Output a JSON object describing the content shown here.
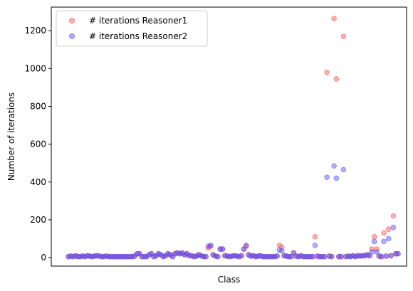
{
  "chart_data": {
    "type": "scatter",
    "xlabel": "Class",
    "ylabel": "Number of iterations",
    "ylim": [
      -45,
      1325
    ],
    "yticks": [
      0,
      200,
      400,
      600,
      800,
      1000,
      1200
    ],
    "xticks_visible": false,
    "grid": false,
    "legend_placement": "top-left",
    "series": [
      {
        "name": "# iterations Reasoner1",
        "color": "#ff4d4d",
        "values": [
          5,
          8,
          5,
          10,
          5,
          5,
          8,
          5,
          10,
          8,
          5,
          8,
          10,
          8,
          5,
          5,
          8,
          5,
          5,
          5,
          5,
          5,
          5,
          5,
          5,
          5,
          5,
          5,
          8,
          20,
          20,
          5,
          5,
          5,
          15,
          20,
          5,
          10,
          20,
          15,
          5,
          10,
          20,
          15,
          5,
          20,
          25,
          20,
          25,
          15,
          20,
          10,
          10,
          5,
          8,
          15,
          10,
          5,
          5,
          50,
          60,
          15,
          8,
          5,
          45,
          45,
          10,
          8,
          5,
          8,
          10,
          8,
          5,
          10,
          45,
          60,
          15,
          8,
          10,
          5,
          8,
          10,
          5,
          5,
          5,
          5,
          5,
          5,
          8,
          65,
          55,
          10,
          8,
          5,
          5,
          25,
          8,
          5,
          10,
          5,
          5,
          5,
          5,
          5,
          110,
          8,
          5,
          5,
          5,
          980,
          8,
          5,
          1265,
          945,
          5,
          5,
          1170,
          5,
          8,
          5,
          10,
          5,
          10,
          8,
          10,
          10,
          15,
          10,
          45,
          110,
          45,
          8,
          5,
          130,
          8,
          150,
          10,
          220,
          20,
          20
        ]
      },
      {
        "name": "# iterations Reasoner2",
        "color": "#4d4dff",
        "values": [
          5,
          8,
          5,
          10,
          5,
          5,
          8,
          5,
          10,
          8,
          5,
          8,
          10,
          8,
          5,
          5,
          8,
          5,
          5,
          5,
          5,
          5,
          5,
          5,
          5,
          5,
          5,
          5,
          8,
          20,
          20,
          5,
          5,
          5,
          15,
          20,
          5,
          10,
          20,
          15,
          5,
          10,
          20,
          15,
          5,
          20,
          25,
          20,
          25,
          15,
          20,
          10,
          10,
          5,
          8,
          15,
          10,
          5,
          5,
          60,
          65,
          15,
          8,
          5,
          45,
          45,
          10,
          8,
          5,
          8,
          10,
          8,
          5,
          10,
          45,
          65,
          15,
          8,
          10,
          5,
          8,
          10,
          5,
          5,
          5,
          5,
          5,
          5,
          8,
          40,
          35,
          10,
          8,
          5,
          5,
          25,
          8,
          5,
          10,
          5,
          5,
          5,
          5,
          5,
          65,
          8,
          5,
          5,
          5,
          425,
          8,
          5,
          485,
          420,
          5,
          5,
          465,
          5,
          8,
          5,
          10,
          5,
          10,
          8,
          10,
          10,
          15,
          10,
          30,
          85,
          30,
          8,
          5,
          85,
          8,
          100,
          10,
          160,
          20,
          20
        ]
      }
    ]
  }
}
